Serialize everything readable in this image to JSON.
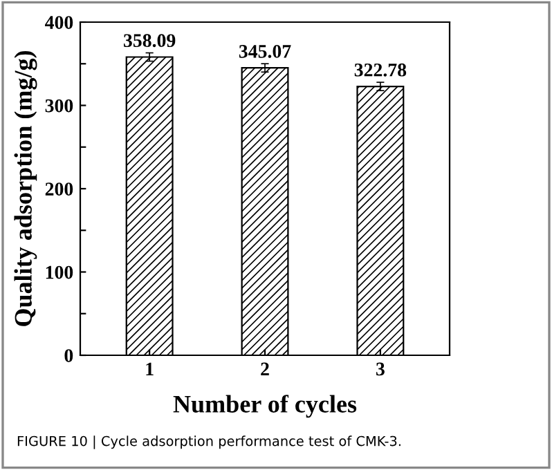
{
  "chart_data": {
    "type": "bar",
    "xlabel": "Number of cycles",
    "ylabel": "Quality adsorption (mg/g)",
    "categories": [
      "1",
      "2",
      "3"
    ],
    "values": [
      358.09,
      345.07,
      322.78
    ],
    "errors": [
      5,
      5,
      5
    ],
    "color": "#000000",
    "data_labels": true,
    "ylim": [
      0,
      400
    ],
    "yticks": [
      0,
      {
        "value": 50,
        "label": null
      },
      100,
      {
        "value": 150,
        "label": null
      },
      200,
      {
        "value": 250,
        "label": null
      },
      300,
      {
        "value": 350,
        "label": null
      },
      400
    ],
    "grid": false,
    "annotations": [
      "FIGURE 10 | Cycle adsorption performance test of CMK-3."
    ]
  }
}
